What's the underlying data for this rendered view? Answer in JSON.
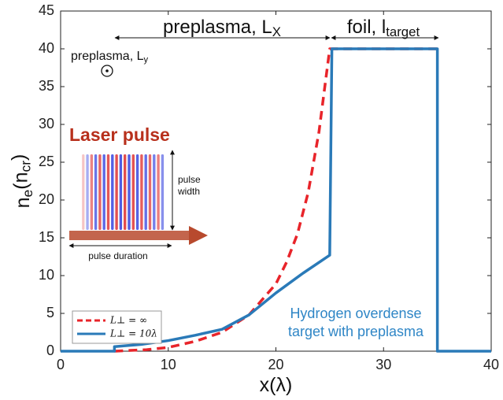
{
  "chart_data": {
    "type": "line",
    "xlabel": [
      {
        "text": "x(",
        "sub": false
      },
      {
        "text": "λ",
        "sub": false
      },
      {
        "text": ")",
        "sub": false
      }
    ],
    "ylabel": [
      {
        "text": "n",
        "sub": false
      },
      {
        "text": "e",
        "sub": true
      },
      {
        "text": "(n",
        "sub": false
      },
      {
        "text": "cr",
        "sub": true
      },
      {
        "text": ")",
        "sub": false
      }
    ],
    "xlim": [
      0,
      40
    ],
    "xticks": [
      0,
      10,
      20,
      30,
      40
    ],
    "ylim": [
      0,
      45
    ],
    "yticks": [
      0,
      5,
      10,
      15,
      20,
      25,
      30,
      35,
      40,
      45
    ],
    "legend": "lower left",
    "series": [
      {
        "name": "L⊥ = ∞",
        "color": "#e8242a",
        "dash": true,
        "x": [
          5,
          8,
          10,
          12.5,
          15,
          17.5,
          20,
          21,
          22,
          23,
          24,
          25,
          35
        ],
        "values": [
          0,
          0.2,
          0.5,
          1.3,
          2.5,
          4.8,
          8.9,
          11.8,
          15.5,
          21,
          29,
          40,
          40
        ]
      },
      {
        "name": "L⊥ = 10λ",
        "color": "#2a7ab8",
        "dash": false,
        "x": [
          0,
          5,
          5,
          7.5,
          10,
          12.5,
          15,
          17.5,
          20,
          22.5,
          25,
          25.2,
          35,
          35,
          40
        ],
        "values": [
          0,
          0,
          0.6,
          0.9,
          1.4,
          2.1,
          2.9,
          4.8,
          7.7,
          10.3,
          12.7,
          40,
          40,
          0,
          0
        ]
      }
    ],
    "annotations": [
      {
        "parts": [
          {
            "text": "preplasma, L",
            "sub": false
          },
          {
            "text": "X",
            "sub": true
          }
        ],
        "color": "#111111"
      },
      {
        "parts": [
          {
            "text": "foil, l",
            "sub": false
          },
          {
            "text": "target",
            "sub": true
          }
        ],
        "color": "#111111"
      },
      {
        "parts": [
          {
            "text": "preplasma, L",
            "sub": false
          },
          {
            "text": "y",
            "sub": true
          }
        ],
        "color": "#111111"
      },
      {
        "parts": [
          {
            "text": "Laser pulse",
            "sub": false
          }
        ],
        "color": "#b8301c"
      },
      {
        "parts": [
          {
            "text": "pulse",
            "sub": false
          }
        ],
        "color": "#111111"
      },
      {
        "parts": [
          {
            "text": "width",
            "sub": false
          }
        ],
        "color": "#111111"
      },
      {
        "parts": [
          {
            "text": "pulse duration",
            "sub": false
          }
        ],
        "color": "#111111"
      },
      {
        "parts": [
          {
            "text": "Hydrogen overdense",
            "sub": false
          }
        ],
        "color": "#2f86c6"
      },
      {
        "parts": [
          {
            "text": "target with preplasma",
            "sub": false
          }
        ],
        "color": "#2f86c6"
      }
    ]
  }
}
